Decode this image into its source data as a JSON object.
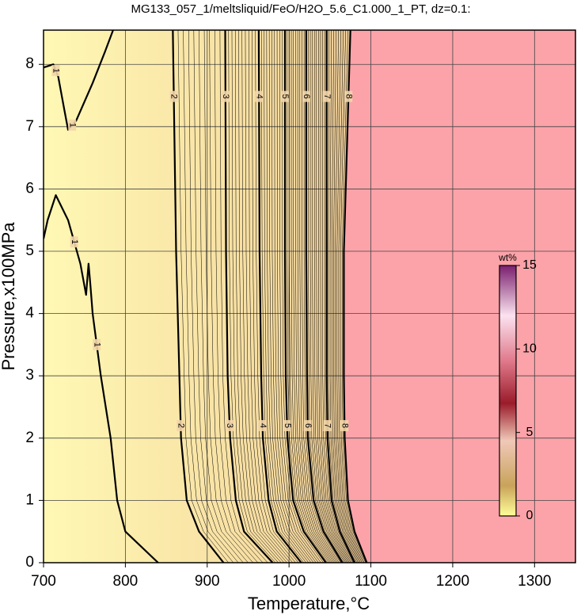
{
  "chart_data": {
    "type": "contour",
    "title": "MG133_057_1/meltsliquid/FeO/H2O_5.6_C1.000_1_PT, dz=0.1:",
    "xlabel": "Temperature,°C",
    "ylabel": "Pressure,x100MPa",
    "xlim": [
      700,
      1350
    ],
    "ylim": [
      0,
      8.55
    ],
    "xticks": [
      700,
      800,
      900,
      1000,
      1100,
      1200,
      1300
    ],
    "yticks": [
      0,
      1,
      2,
      3,
      4,
      5,
      6,
      7,
      8
    ],
    "grid": true,
    "contours": [
      {
        "level": 1,
        "x": [
          840,
          800,
          790,
          782,
          770,
          760,
          757,
          755,
          752,
          745,
          730,
          715,
          705,
          700
        ],
        "y": [
          0,
          0.5,
          1,
          2,
          3,
          4,
          4.5,
          4.8,
          4.3,
          4.8,
          5.5,
          5.9,
          5.5,
          5.2
        ]
      },
      {
        "level": 1,
        "x": [
          785,
          775,
          760,
          740,
          730,
          725,
          718,
          712,
          700
        ],
        "y": [
          8.55,
          8.2,
          7.7,
          7.1,
          6.95,
          7.3,
          7.8,
          8.0,
          7.95
        ]
      },
      {
        "level": 2,
        "x": [
          920,
          890,
          875,
          868,
          866,
          862,
          858
        ],
        "y": [
          0,
          0.5,
          1,
          2,
          3,
          5,
          8.55
        ]
      },
      {
        "level": 3,
        "x": [
          980,
          945,
          935,
          928,
          925,
          923,
          922
        ],
        "y": [
          0,
          0.5,
          1,
          2,
          3,
          5,
          8.55
        ]
      },
      {
        "level": 4,
        "x": [
          1015,
          985,
          975,
          968,
          966,
          964,
          963
        ],
        "y": [
          0,
          0.5,
          1,
          2,
          3,
          5,
          8.55
        ]
      },
      {
        "level": 5,
        "x": [
          1045,
          1018,
          1005,
          998,
          996,
          995,
          995
        ],
        "y": [
          0,
          0.5,
          1,
          2,
          3,
          5,
          8.55
        ]
      },
      {
        "level": 6,
        "x": [
          1065,
          1042,
          1030,
          1023,
          1022,
          1021,
          1021
        ],
        "y": [
          0,
          0.5,
          1,
          2,
          3,
          5,
          8.55
        ]
      },
      {
        "level": 7,
        "x": [
          1080,
          1062,
          1052,
          1047,
          1046,
          1046,
          1046
        ],
        "y": [
          0,
          0.5,
          1,
          2,
          3,
          5,
          8.55
        ]
      },
      {
        "level": 8,
        "x": [
          1095,
          1080,
          1072,
          1068,
          1067,
          1067,
          1075
        ],
        "y": [
          0,
          0.5,
          1,
          2,
          3,
          5,
          8.55
        ]
      }
    ],
    "colorbar": {
      "label": "wt%",
      "lim": [
        0,
        15
      ],
      "ticks": [
        0,
        5,
        10,
        15
      ]
    }
  }
}
